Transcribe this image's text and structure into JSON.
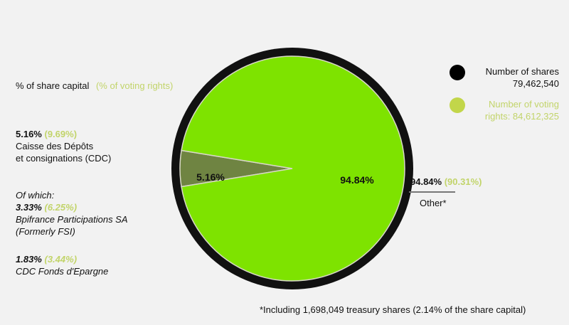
{
  "chart_data": {
    "type": "pie",
    "slices": [
      {
        "label": "Caisse des Dépôts et consignations (CDC)",
        "value": 5.16,
        "display": "5.16%",
        "color": "#6f8442"
      },
      {
        "label": "Other*",
        "value": 94.84,
        "display": "94.84%",
        "color": "#7ee300"
      }
    ],
    "ring_color": "#111111"
  },
  "header": {
    "share_capital": "% of share capital",
    "voting_rights": "(% of voting rights)"
  },
  "cdc": {
    "pct": "5.16%",
    "voting": "(9.69%)",
    "name_line1": "Caisse des Dépôts",
    "name_line2": "et consignations (CDC)"
  },
  "of_which": "Of which:",
  "bpi": {
    "pct": "3.33%",
    "voting": "(6.25%)",
    "name_line1": "Bpifrance Participations SA",
    "name_line2": "(Formerly FSI)"
  },
  "fonds": {
    "pct": "1.83%",
    "voting": "(3.44%)",
    "name": "CDC Fonds d'Epargne"
  },
  "other": {
    "pct": "94.84%",
    "voting": "(90.31%)",
    "label": "Other*"
  },
  "legend": {
    "shares_label": "Number of shares",
    "shares_value": "79,462,540",
    "shares_color": "#000000",
    "voting_label_line1": "Number of voting",
    "voting_label_line2": "rights: 84,612,325",
    "voting_color": "#c2d64a"
  },
  "footnote": "*Including 1,698,049 treasury shares (2.14% of the share capital)"
}
